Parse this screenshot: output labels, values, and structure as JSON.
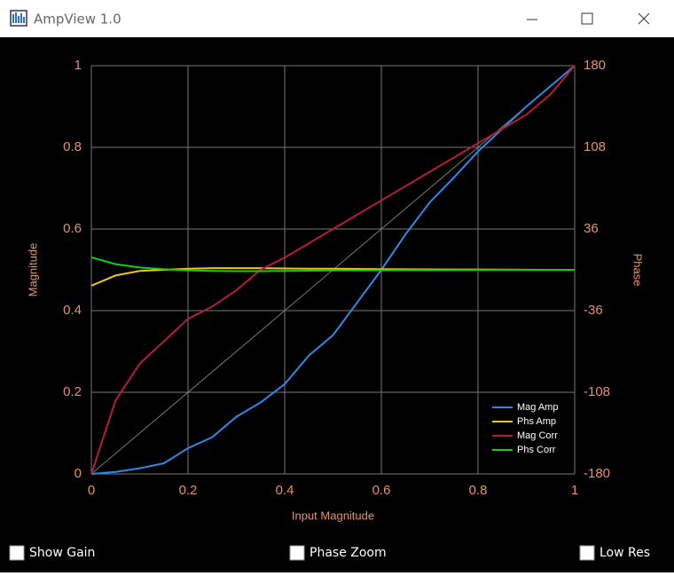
{
  "window": {
    "title": "AmpView 1.0"
  },
  "chart_data": {
    "type": "line",
    "xlabel": "Input Magnitude",
    "ylabel": "Magnitude",
    "y2label": "Phase",
    "x": [
      0,
      0.05,
      0.1,
      0.15,
      0.2,
      0.25,
      0.3,
      0.35,
      0.4,
      0.45,
      0.5,
      0.55,
      0.6,
      0.65,
      0.7,
      0.75,
      0.8,
      0.85,
      0.9,
      0.95,
      1
    ],
    "series": [
      {
        "name": "Mag Amp",
        "color": "#2f88e8",
        "values": [
          0,
          0.005,
          0.014,
          0.026,
          0.063,
          0.09,
          0.14,
          0.175,
          0.22,
          0.29,
          0.34,
          0.42,
          0.5,
          0.587,
          0.665,
          0.726,
          0.79,
          0.845,
          0.9,
          0.95,
          1
        ]
      },
      {
        "name": "Phs Amp",
        "color": "#f0c419",
        "axis": "y2",
        "values": [
          -14,
          -5,
          -1,
          0,
          1,
          1.5,
          1.5,
          1.5,
          1.2,
          1,
          1,
          0.8,
          0.6,
          0.5,
          0.4,
          0.3,
          0.3,
          0.2,
          0.1,
          0,
          0
        ]
      },
      {
        "name": "Mag Corr",
        "color": "#b81c34",
        "values": [
          0,
          0.18,
          0.27,
          0.325,
          0.38,
          0.41,
          0.45,
          0.5,
          0.53,
          0.565,
          0.6,
          0.635,
          0.67,
          0.705,
          0.74,
          0.775,
          0.81,
          0.845,
          0.88,
          0.93,
          1
        ]
      },
      {
        "name": "Phs Corr",
        "color": "#12d012",
        "axis": "y2",
        "values": [
          11,
          5,
          2,
          0.5,
          -0.5,
          -1,
          -1.2,
          -1.2,
          -1,
          -0.8,
          -0.6,
          -0.5,
          -0.4,
          -0.3,
          -0.3,
          -0.2,
          -0.1,
          0,
          0,
          0,
          0
        ]
      }
    ],
    "xlim": [
      0,
      1
    ],
    "xticks": [
      0,
      0.2,
      0.4,
      0.6,
      0.8,
      1
    ],
    "ylim": [
      0,
      1
    ],
    "yticks": [
      0,
      0.2,
      0.4,
      0.6,
      0.8,
      1
    ],
    "y2lim": [
      -180,
      180
    ],
    "y2ticks": [
      -180,
      -108,
      -36,
      36,
      108,
      180
    ],
    "grid": true,
    "legend": "lower right"
  },
  "controls": {
    "checkboxes": [
      {
        "label": "Show Gain"
      },
      {
        "label": "Phase Zoom"
      },
      {
        "label": "Low Res"
      }
    ]
  }
}
